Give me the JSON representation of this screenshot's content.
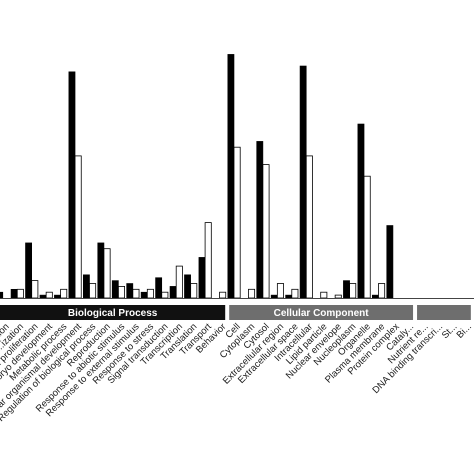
{
  "chart_data": {
    "type": "bar",
    "title": "",
    "xlabel": "",
    "ylabel": "",
    "ylim": [
      0,
      100
    ],
    "grid": false,
    "legend": "none",
    "colors": {
      "series_a": "#000000",
      "series_b": "#ffffff",
      "bio_band": "#111111",
      "cell_band": "#6e6e6e"
    },
    "groups": [
      {
        "label": "Biological Process",
        "count": 16
      },
      {
        "label": "Cellular Component",
        "count": 13
      },
      {
        "label": "",
        "count": 4
      }
    ],
    "categories": [
      "...tion",
      "...ization",
      "Cell proliferation",
      "Embryo development",
      "Metabolic process",
      "Multicellular organismal development",
      "Regulation of biological process",
      "Reproduction",
      "Response to abiotic stimulus",
      "Response to external stimulus",
      "Response to stress",
      "Signal transduction",
      "Transcription",
      "Translation",
      "Transport",
      "Behavior",
      "Cell",
      "Cytoplasm",
      "Cytosol",
      "Extracellular region",
      "Extracellular space",
      "Intracellular",
      "Lipid particle",
      "Nuclear envelope",
      "Nucleoplasm",
      "Organelle",
      "Plasma membrane",
      "Protein complex",
      "Cataly...",
      "Nutrient re...",
      "DNA binding transcri...",
      "St...",
      "Bi..."
    ],
    "series": [
      {
        "name": "",
        "values": [
          2,
          3,
          19,
          1,
          1,
          78,
          8,
          19,
          6,
          5,
          2,
          7,
          4,
          8,
          14,
          0,
          84,
          0,
          54,
          1,
          1,
          80,
          0,
          0,
          6,
          60,
          1,
          25,
          0,
          0,
          0,
          0,
          0
        ]
      },
      {
        "name": "",
        "values": [
          0,
          3,
          6,
          2,
          3,
          49,
          5,
          17,
          4,
          3,
          3,
          2,
          11,
          5,
          26,
          2,
          52,
          3,
          46,
          5,
          3,
          49,
          2,
          1,
          5,
          42,
          5,
          0,
          0,
          0,
          0,
          0,
          0
        ]
      }
    ]
  }
}
